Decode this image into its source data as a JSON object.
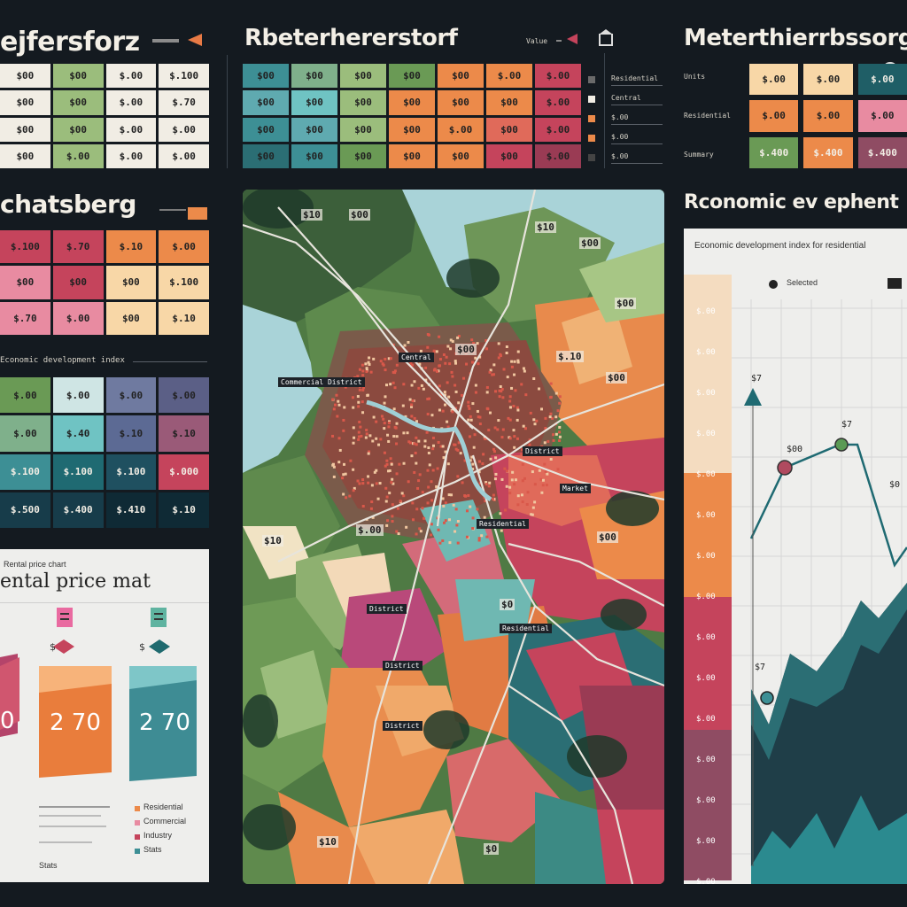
{
  "colors": {
    "background": "#141a20",
    "red": "#c5445c",
    "orange": "#ec8a4a",
    "peach": "#f8d7a7",
    "green": "#6a9a55",
    "lightgreen": "#9bbd7c",
    "teal": "#3d8f95",
    "darkteal": "#1f5e66",
    "cream": "#f1ede4",
    "pink": "#e88ba1",
    "purple": "#8f4c63"
  },
  "left_top": {
    "title": "ejfersforz",
    "legend_icon": "arrow-icon",
    "table": [
      [
        "$00",
        "$00",
        "$.00",
        "$.100"
      ],
      [
        "$00",
        "$00",
        "$.00",
        "$.70"
      ],
      [
        "$00",
        "$00",
        "$.00",
        "$.00"
      ],
      [
        "$00",
        "$.00",
        "$.00",
        "$.00"
      ]
    ]
  },
  "left_mid": {
    "title": "chatsberg",
    "table": [
      [
        "$.100",
        "$.70",
        "$.10",
        "$.00"
      ],
      [
        "$00",
        "$00",
        "$00",
        "$.100"
      ],
      [
        "$.70",
        "$.00",
        "$00",
        "$.10"
      ]
    ],
    "subtitle": "Economic development index"
  },
  "left_lower": {
    "table": [
      [
        "$.00",
        "$.00",
        "$.00",
        "$.00"
      ],
      [
        "$.00",
        "$.40",
        "$.10",
        "$.10"
      ],
      [
        "$.100",
        "$.100",
        "$.100",
        "$.000"
      ],
      [
        "$.500",
        "$.400",
        "$.410",
        "$.10"
      ]
    ]
  },
  "rental": {
    "header_small": "Rental price chart",
    "title": "ental price mat",
    "values": [
      "0",
      "2 70",
      "2 70"
    ],
    "footer_lines": [
      "Residential",
      "Commercial",
      "Industry",
      "Stats"
    ]
  },
  "center": {
    "title": "Rbeterhererstorf",
    "legend_label": "Value",
    "table": [
      [
        "$00",
        "$00",
        "$00",
        "$00",
        "$00",
        "$.00",
        "$.00"
      ],
      [
        "$00",
        "$00",
        "$00",
        "$00",
        "$00",
        "$00",
        "$.00"
      ],
      [
        "$00",
        "$00",
        "$00",
        "$00",
        "$.00",
        "$00",
        "$.00"
      ],
      [
        "$00",
        "$00",
        "$00",
        "$00",
        "$00",
        "$00",
        "$.00"
      ]
    ],
    "table_legend": [
      "Residential",
      "Central",
      "$.00",
      "$.00",
      "$.00"
    ],
    "map_labels": [
      "$10",
      "$00",
      "$10",
      "$00",
      "$10",
      "$00",
      "$.10",
      "$00",
      "$00",
      "$00",
      "$10",
      "$0",
      "$.00",
      "$0"
    ],
    "map_districts": [
      "Commercial District",
      "Central",
      "District",
      "Market",
      "Residential",
      "District",
      "Residential",
      "District",
      "District"
    ]
  },
  "right_top": {
    "title": "Meterthierrbssorg",
    "row_labels": [
      "Units",
      "Residential",
      "Summary"
    ],
    "table": [
      [
        "$.00",
        "$.00",
        "$.00"
      ],
      [
        "$.00",
        "$.00",
        "$.00"
      ],
      [
        "$.400",
        "$.400",
        "$.400"
      ]
    ]
  },
  "right_chart": {
    "title": "Rconomic ev ephent",
    "subtitle": "Economic development index for residential",
    "legend": "Selected",
    "y_ticks": [
      "$.00",
      "$.00",
      "$.00",
      "$.00",
      "$.00",
      "$.00",
      "$.00",
      "$.00",
      "$.00",
      "$.00",
      "$.00",
      "$.00",
      "$.00",
      "$.00",
      "$.00"
    ],
    "point_labels": [
      "$7",
      "$00",
      "$7",
      "$0",
      "$7"
    ]
  }
}
